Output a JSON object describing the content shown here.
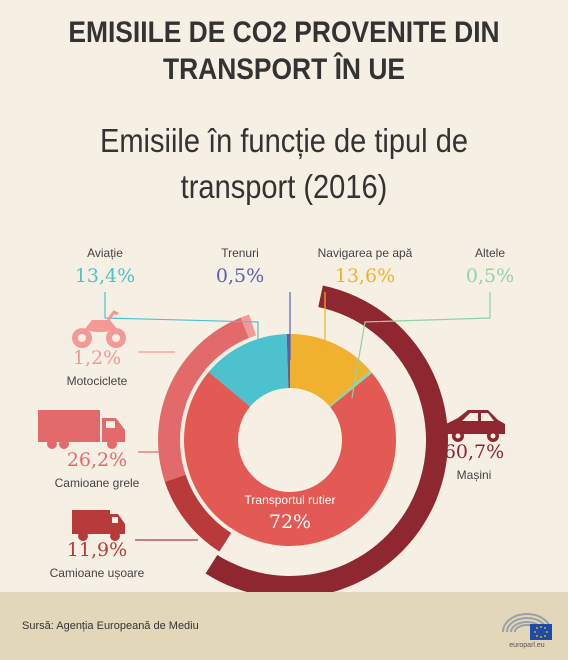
{
  "header": {
    "title_line1": "EMISIILE DE CO2 PROVENITE DIN",
    "title_line2": "TRANSPORT ÎN UE"
  },
  "chart_data": {
    "type": "pie",
    "title": "Emisiile în funcție de tipul de transport (2016)",
    "title_line1": "Emisiile în funcție de tipul de",
    "title_line2": "transport (2016)",
    "slices": [
      {
        "label": "Aviație",
        "value_label": "13,4%",
        "value": 13.4,
        "color": "#4ec1cf"
      },
      {
        "label": "Trenuri",
        "value_label": "0,5%",
        "value": 0.5,
        "color": "#5a5fb0"
      },
      {
        "label": "Navigarea pe apă",
        "value_label": "13,6%",
        "value": 13.6,
        "color": "#f0b12f"
      },
      {
        "label": "Altele",
        "value_label": "0,5%",
        "value": 0.5,
        "color": "#8fd3a6"
      },
      {
        "label": "Transportul rutier",
        "value_label": "72%",
        "value": 72,
        "color": "#e25a53"
      }
    ],
    "road_breakdown": [
      {
        "label": "Mașini",
        "value_label": "60,7%",
        "value": 60.7,
        "color": "#8e2730",
        "icon": "car-icon"
      },
      {
        "label": "Motociclete",
        "value_label": "1,2%",
        "value": 1.2,
        "color": "#f39a99",
        "icon": "motorcycle-icon"
      },
      {
        "label": "Camioane grele",
        "value_label": "26,2%",
        "value": 26.2,
        "color": "#e36a6a",
        "icon": "heavy-truck-icon"
      },
      {
        "label": "Camioane ușoare",
        "value_label": "11,9%",
        "value": 11.9,
        "color": "#b83a3a",
        "icon": "van-icon"
      }
    ]
  },
  "footer": {
    "source": "Sursă: Agenția Europeană de Mediu",
    "logo_text": "europarl.eu"
  }
}
